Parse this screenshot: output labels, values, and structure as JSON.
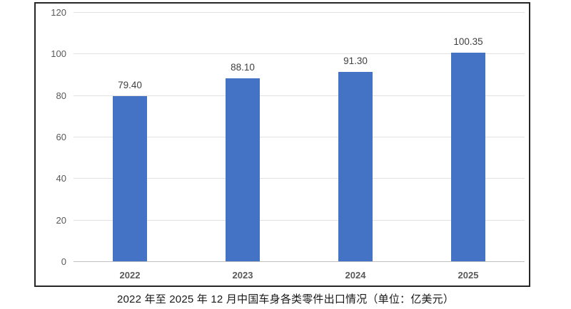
{
  "page": {
    "caption": "2022 年至 2025 年 12 月中国车身各类零件出口情况（单位：亿美元）"
  },
  "chart_data": {
    "type": "bar",
    "categories": [
      "2022",
      "2023",
      "2024",
      "2025"
    ],
    "values": [
      79.4,
      88.1,
      91.3,
      100.35
    ],
    "value_labels": [
      "79.40",
      "88.10",
      "91.30",
      "100.35"
    ],
    "title": "2022 年至 2025 年 12 月中国车身各类零件出口情况（单位：亿美元）",
    "xlabel": "",
    "ylabel": "",
    "ylim": [
      0,
      120
    ],
    "yticks": [
      0,
      20,
      40,
      60,
      80,
      100,
      120
    ],
    "grid": true,
    "legend_position": "none",
    "bar_color": "#4472C4"
  },
  "colors": {
    "bar": "#4472C4",
    "gridline": "#e2e2e2",
    "axis_line": "#c0c0c0",
    "tick_label": "#595959",
    "data_label": "#404040",
    "caption_text": "#1a1a1a",
    "frame_border": "#262626"
  }
}
